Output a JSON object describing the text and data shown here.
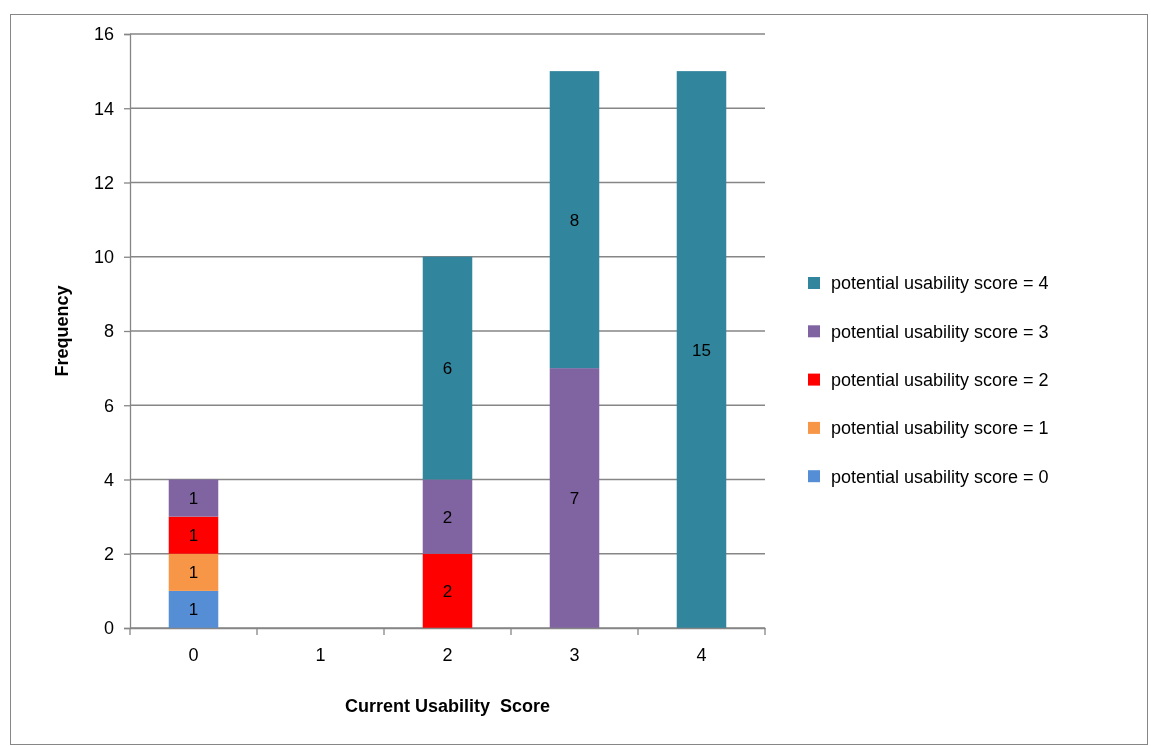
{
  "chart_data": {
    "type": "bar",
    "xlabel": "Current Usability  Score",
    "ylabel": "Frequency",
    "categories": [
      "0",
      "1",
      "2",
      "3",
      "4"
    ],
    "series": [
      {
        "name": "potential usability score = 0",
        "color": "#558ed5",
        "values": [
          1,
          null,
          null,
          null,
          null
        ]
      },
      {
        "name": "potential usability score = 1",
        "color": "#f79646",
        "values": [
          1,
          null,
          null,
          null,
          null
        ]
      },
      {
        "name": "potential usability score = 2",
        "color": "#ff0000",
        "values": [
          1,
          null,
          2,
          null,
          null
        ]
      },
      {
        "name": "potential usability score = 3",
        "color": "#8064a2",
        "values": [
          1,
          null,
          2,
          7,
          null
        ]
      },
      {
        "name": "potential usability score = 4",
        "color": "#31859c",
        "values": [
          null,
          null,
          6,
          8,
          15
        ]
      }
    ],
    "stacked": true,
    "data_labels": true,
    "ylim": [
      0,
      16
    ],
    "yticks": [
      0,
      2,
      4,
      6,
      8,
      10,
      12,
      14,
      16
    ],
    "grid": "y",
    "legend": "right"
  }
}
